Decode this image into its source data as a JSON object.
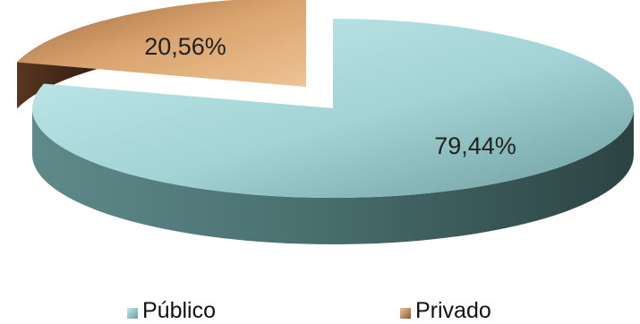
{
  "chart_data": {
    "type": "pie",
    "style": "3d-exploded",
    "categories": [
      "Público",
      "Privado"
    ],
    "values": [
      79.44,
      20.56
    ],
    "data_labels": [
      "79,44%",
      "20,56%"
    ],
    "colors": [
      "#9fcfcf",
      "#d9a46f"
    ],
    "legend_position": "bottom"
  },
  "legend": {
    "items": [
      {
        "label": "Público",
        "color": "#9fcfcf"
      },
      {
        "label": "Privado",
        "color": "#d9a46f"
      }
    ]
  }
}
